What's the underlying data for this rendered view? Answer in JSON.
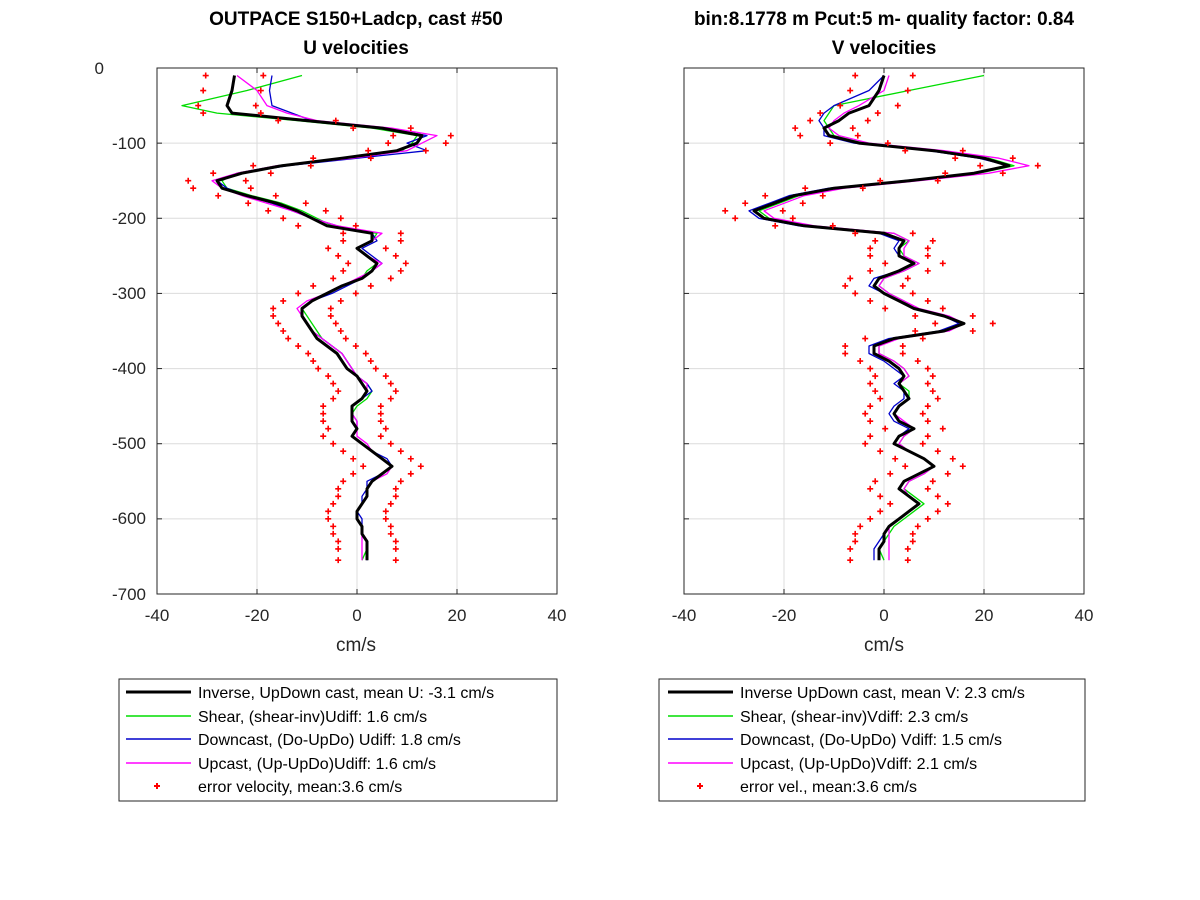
{
  "chart_data": [
    {
      "type": "line",
      "title_line1": "OUTPACE S150+Ladcp, cast #50",
      "title_line2": "U velocities",
      "xlabel": "cm/s",
      "ylabel": "",
      "xlim": [
        -40,
        40
      ],
      "ylim": [
        -700,
        0
      ],
      "xticks": [
        "-40",
        "-20",
        "0",
        "20",
        "40"
      ],
      "yticks": [
        "0",
        "-100",
        "-200",
        "-300",
        "-400",
        "-500",
        "-600",
        "-700"
      ],
      "grid": true,
      "legend_position": "below",
      "legend": [
        "Inverse, UpDown cast, mean U:  -3.1 cm/s",
        "Shear, (shear-inv)Udiff:  1.6 cm/s",
        "Downcast, (Do-UpDo) Udiff:  1.8 cm/s",
        "Upcast, (Up-UpDo)Udiff:  1.6 cm/s",
        "error velocity, mean:3.6 cm/s"
      ],
      "depth": [
        -10,
        -30,
        -50,
        -60,
        -70,
        -80,
        -90,
        -100,
        -110,
        -120,
        -130,
        -140,
        -150,
        -160,
        -170,
        -180,
        -190,
        -200,
        -210,
        -220,
        -230,
        -240,
        -250,
        -260,
        -270,
        -280,
        -290,
        -300,
        -310,
        -320,
        -330,
        -340,
        -350,
        -360,
        -370,
        -380,
        -390,
        -400,
        -410,
        -420,
        -430,
        -440,
        -450,
        -460,
        -470,
        -480,
        -490,
        -500,
        -510,
        -520,
        -530,
        -540,
        -550,
        -560,
        -570,
        -580,
        -590,
        -600,
        -610,
        -620,
        -630,
        -640,
        -655
      ],
      "series": [
        {
          "name": "Inverse, UpDown cast, mean U:  -3.1 cm/s",
          "color": "#000000",
          "width": 3,
          "values": [
            -24.5,
            -25,
            -26,
            -25,
            -10,
            5,
            13,
            12,
            8,
            -3,
            -15,
            -23,
            -28,
            -27,
            -22,
            -16,
            -12,
            -9,
            -6,
            3,
            3,
            0,
            2,
            4,
            3,
            1,
            -3,
            -6,
            -9,
            -11,
            -11,
            -10,
            -9,
            -8,
            -6,
            -4,
            -3,
            -2,
            0,
            1,
            2,
            1,
            -1,
            -1,
            -1,
            0,
            -1,
            1,
            3,
            5,
            7,
            5,
            3,
            2,
            2,
            1,
            0,
            0,
            1,
            1,
            2,
            2,
            2
          ]
        },
        {
          "name": "Shear, (shear-inv)Udiff:  1.6 cm/s",
          "color": "#00dd00",
          "width": 1.3,
          "values": [
            -11,
            -22,
            -35,
            -28,
            -12,
            3,
            12,
            11,
            9,
            -2,
            -16,
            -24,
            -27,
            -26,
            -21,
            -15,
            -11,
            -8,
            -5,
            4,
            3,
            0,
            2,
            4,
            2,
            1,
            -3,
            -6,
            -9,
            -11,
            -10,
            -9,
            -8,
            -7,
            -5,
            -3,
            -2,
            -1,
            0,
            2,
            3,
            2,
            0,
            -1,
            -1,
            0,
            -1,
            1,
            3,
            5,
            7,
            5,
            3,
            2,
            2,
            1,
            0,
            0,
            1,
            1,
            2,
            2,
            1
          ]
        },
        {
          "name": "Downcast, (Do-UpDo) Udiff:  1.8 cm/s",
          "color": "#0000cc",
          "width": 1.3,
          "values": [
            -17,
            -17.5,
            -17,
            -13,
            -9,
            6,
            14,
            10,
            14,
            0,
            -14,
            -23,
            -28,
            -26,
            -22,
            -17,
            -13,
            -9,
            -4,
            3,
            4,
            1,
            3,
            5,
            3,
            1,
            -2,
            -5,
            -9,
            -11,
            -11,
            -10,
            -9,
            -7,
            -5,
            -3,
            -2,
            -1,
            0,
            2,
            3,
            1,
            -1,
            -1,
            0,
            0,
            -1,
            1,
            3,
            6,
            7,
            5,
            2,
            2,
            1,
            1,
            0,
            1,
            1,
            1,
            2,
            2,
            2
          ]
        },
        {
          "name": "Upcast, (Up-UpDo)Udiff:  1.6 cm/s",
          "color": "#ff00ff",
          "width": 1.3,
          "values": [
            -24,
            -20,
            -18,
            -14,
            -8,
            7,
            16,
            13,
            10,
            -1,
            -16,
            -24,
            -29,
            -27,
            -23,
            -18,
            -13,
            -9,
            -4,
            5,
            3,
            0,
            2,
            5,
            3,
            0,
            -3,
            -6,
            -10,
            -12,
            -11,
            -10,
            -9,
            -7,
            -5,
            -3,
            -2,
            -1,
            0,
            2,
            2,
            1,
            -1,
            -1,
            0,
            0,
            0,
            2,
            3,
            5,
            7,
            6,
            3,
            2,
            2,
            1,
            0,
            0,
            1,
            1,
            1,
            1,
            1
          ]
        }
      ],
      "error_velocity_mean": 3.6
    },
    {
      "type": "line",
      "title_line1": "bin:8.1778 m  Pcut:5 m- quality factor:  0.84",
      "title_line2": "V velocities",
      "xlabel": "cm/s",
      "ylabel": "",
      "xlim": [
        -40,
        40
      ],
      "ylim": [
        -700,
        0
      ],
      "xticks": [
        "-40",
        "-20",
        "0",
        "20",
        "40"
      ],
      "yticks": [
        "0",
        "-100",
        "-200",
        "-300",
        "-400",
        "-500",
        "-600",
        "-700"
      ],
      "grid": true,
      "legend_position": "below",
      "legend": [
        "Inverse UpDown cast, mean V:  2.3 cm/s",
        "Shear, (shear-inv)Vdiff:  2.3 cm/s",
        "Downcast, (Do-UpDo) Vdiff:  1.5 cm/s",
        "Upcast, (Up-UpDo)Vdiff:  2.1 cm/s",
        "error vel., mean:3.6 cm/s"
      ],
      "depth": [
        -10,
        -30,
        -50,
        -60,
        -70,
        -80,
        -90,
        -100,
        -110,
        -120,
        -130,
        -140,
        -150,
        -160,
        -170,
        -180,
        -190,
        -200,
        -210,
        -220,
        -230,
        -240,
        -250,
        -260,
        -270,
        -280,
        -290,
        -300,
        -310,
        -320,
        -330,
        -340,
        -350,
        -360,
        -370,
        -380,
        -390,
        -400,
        -410,
        -420,
        -430,
        -440,
        -450,
        -460,
        -470,
        -480,
        -490,
        -500,
        -510,
        -520,
        -530,
        -540,
        -550,
        -560,
        -570,
        -580,
        -590,
        -600,
        -610,
        -620,
        -630,
        -640,
        -655
      ],
      "series": [
        {
          "name": "Inverse UpDown cast, mean V:  2.3 cm/s",
          "color": "#000000",
          "width": 3,
          "values": [
            0,
            -1,
            -3,
            -7,
            -9,
            -12,
            -11,
            -5,
            10,
            20,
            25,
            18,
            5,
            -10,
            -18,
            -22,
            -26,
            -24,
            -16,
            0,
            4,
            3,
            3,
            6,
            3,
            -1,
            -2,
            0,
            3,
            6,
            12,
            16,
            12,
            2,
            -2,
            -2,
            1,
            3,
            4,
            3,
            4,
            5,
            3,
            2,
            3,
            6,
            3,
            2,
            5,
            8,
            10,
            7,
            4,
            3,
            5,
            7,
            5,
            3,
            1,
            0,
            0,
            -1,
            -1
          ]
        },
        {
          "name": "Shear, (shear-inv)Vdiff:  2.3 cm/s",
          "color": "#00dd00",
          "width": 1.3,
          "values": [
            20,
            5,
            -10,
            -11,
            -12,
            -11,
            -10,
            -4,
            11,
            21,
            26,
            19,
            6,
            -9,
            -17,
            -21,
            -25,
            -23,
            -15,
            2,
            5,
            3,
            4,
            7,
            4,
            0,
            -1,
            1,
            4,
            6,
            12,
            16,
            12,
            2,
            -1,
            -1,
            2,
            4,
            5,
            3,
            5,
            5,
            3,
            2,
            3,
            6,
            4,
            3,
            5,
            8,
            10,
            8,
            5,
            4,
            6,
            8,
            6,
            4,
            2,
            1,
            0,
            -1,
            0
          ]
        },
        {
          "name": "Downcast, (Do-UpDo) Vdiff:  1.5 cm/s",
          "color": "#0000cc",
          "width": 1.3,
          "values": [
            0,
            -3,
            -10,
            -12,
            -13,
            -12,
            -12,
            -6,
            9,
            19,
            25,
            18,
            4,
            -11,
            -19,
            -23,
            -27,
            -25,
            -17,
            -1,
            3,
            2,
            3,
            6,
            3,
            -2,
            -3,
            0,
            3,
            6,
            12,
            15,
            11,
            1,
            -3,
            -3,
            0,
            2,
            4,
            2,
            4,
            4,
            2,
            1,
            2,
            5,
            3,
            2,
            5,
            8,
            10,
            7,
            4,
            3,
            5,
            7,
            5,
            3,
            1,
            0,
            -1,
            -2,
            -2
          ]
        },
        {
          "name": "Upcast, (Up-UpDo)Vdiff:  2.1 cm/s",
          "color": "#ff00ff",
          "width": 1.3,
          "values": [
            1,
            0,
            -5,
            -8,
            -10,
            -11,
            -9,
            -3,
            12,
            23,
            29,
            21,
            7,
            -8,
            -16,
            -20,
            -24,
            -22,
            -14,
            2,
            5,
            4,
            4,
            7,
            4,
            0,
            -1,
            1,
            4,
            7,
            13,
            16,
            13,
            3,
            -1,
            -1,
            2,
            4,
            5,
            3,
            4,
            5,
            3,
            2,
            4,
            6,
            4,
            3,
            5,
            8,
            10,
            8,
            5,
            4,
            5,
            7,
            5,
            3,
            1,
            1,
            1,
            1,
            1
          ]
        }
      ],
      "error_velocity_mean": 3.6
    }
  ]
}
